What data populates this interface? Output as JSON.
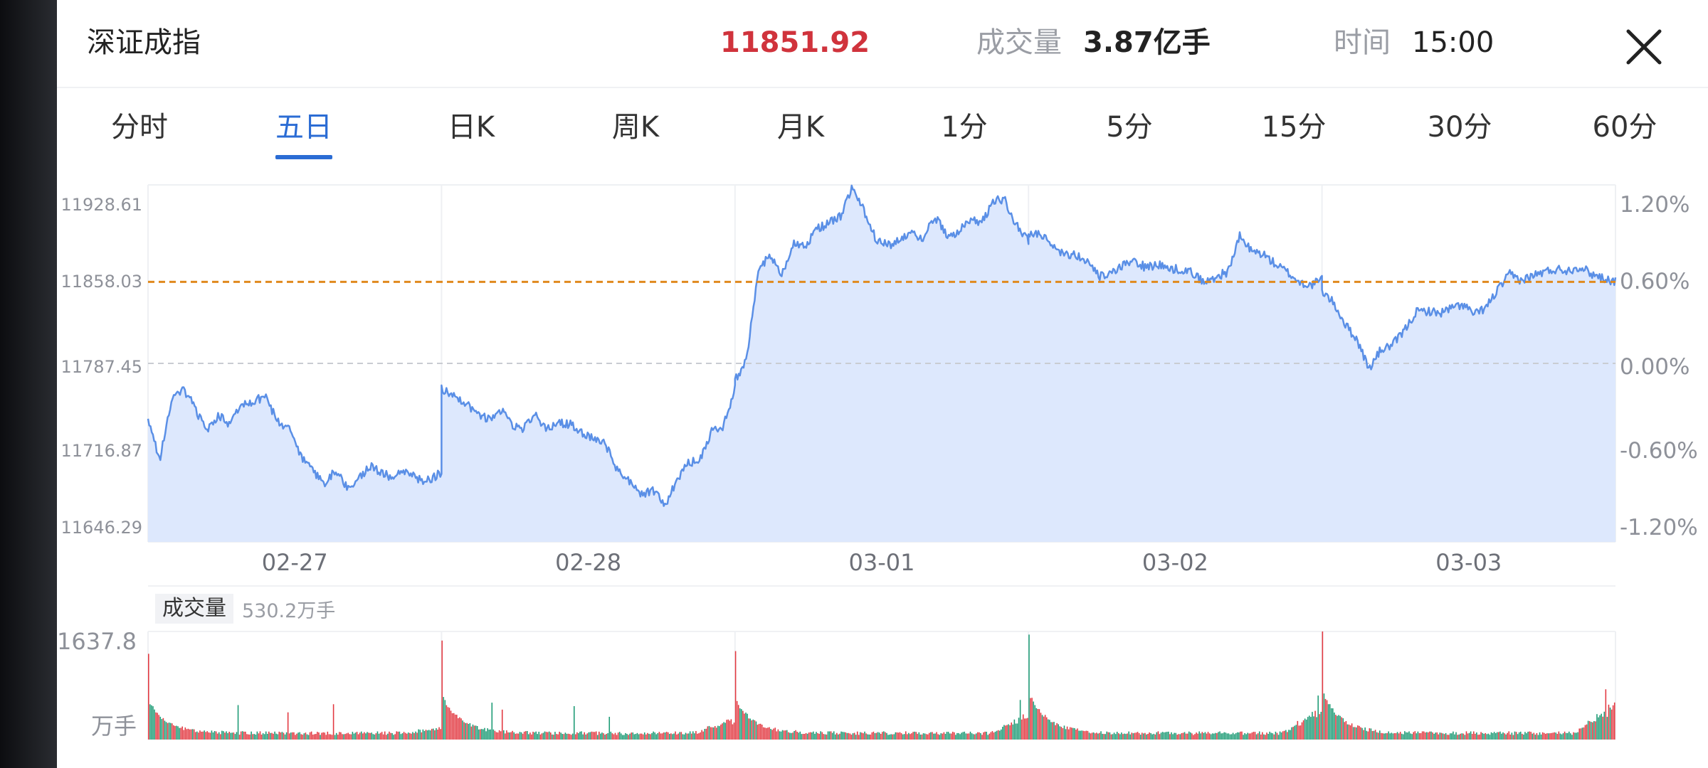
{
  "header": {
    "title": "深证成指",
    "price": "11851.92",
    "volume_label": "成交量",
    "volume_value": "3.87亿手",
    "time_label": "时间",
    "time_value": "15:00",
    "close_icon": "close-icon"
  },
  "tabs": [
    {
      "label": "分时",
      "active": false
    },
    {
      "label": "五日",
      "active": true
    },
    {
      "label": "日K",
      "active": false
    },
    {
      "label": "周K",
      "active": false
    },
    {
      "label": "月K",
      "active": false
    },
    {
      "label": "1分",
      "active": false
    },
    {
      "label": "5分",
      "active": false
    },
    {
      "label": "15分",
      "active": false
    },
    {
      "label": "30分",
      "active": false
    },
    {
      "label": "60分",
      "active": false
    }
  ],
  "volume_panel": {
    "label": "成交量",
    "value": "530.2万手",
    "y_max_label": "1637.8",
    "unit_label": "万手"
  },
  "colors": {
    "accent": "#2b6cd4",
    "up": "#e2373f",
    "down": "#1b9a74",
    "price_line": "#5a8fe6",
    "area_fill": "#dbe7fd",
    "reference_line": "#e08a1e"
  },
  "chart_data": [
    {
      "type": "area",
      "x_tick_labels": [
        "02-27",
        "02-28",
        "03-01",
        "03-02",
        "03-03"
      ],
      "y_tick_labels_left": [
        "11928.61",
        "11858.03",
        "11787.45",
        "11716.87",
        "11646.29"
      ],
      "y_tick_labels_right": [
        "1.20%",
        "0.60%",
        "0.00%",
        "-0.60%",
        "-1.20%"
      ],
      "ylim": [
        11646.29,
        11928.61
      ],
      "prev_close": 11787.45,
      "current": 11851.92,
      "days": [
        "02-27",
        "02-28",
        "03-01",
        "03-02",
        "03-03"
      ],
      "series": [
        {
          "values": [
            [
              11742,
              11712,
              11758,
              11768,
              11752,
              11734,
              11747,
              11739,
              11755,
              11757,
              11762,
              11742,
              11735,
              11714,
              11702,
              11693,
              11703,
              11689,
              11698,
              11706,
              11700,
              11697,
              11704,
              11695,
              11696,
              11701
            ],
            [
              11767,
              11762,
              11757,
              11748,
              11743,
              11751,
              11739,
              11736,
              11747,
              11735,
              11741,
              11739,
              11732,
              11727,
              11723,
              11703,
              11695,
              11683,
              11688,
              11674,
              11695,
              11708,
              11712,
              11734,
              11738,
              11768
            ],
            [
              11774,
              11791,
              11861,
              11873,
              11857,
              11882,
              11881,
              11894,
              11898,
              11904,
              11926,
              11908,
              11886,
              11881,
              11884,
              11891,
              11886,
              11904,
              11889,
              11891,
              11901,
              11898,
              11917,
              11916,
              11896,
              11884
            ],
            [
              11890,
              11889,
              11882,
              11874,
              11874,
              11867,
              11856,
              11858,
              11864,
              11869,
              11863,
              11866,
              11862,
              11862,
              11859,
              11851,
              11856,
              11860,
              11888,
              11876,
              11874,
              11866,
              11860,
              11852,
              11849,
              11854
            ],
            [
              11845,
              11835,
              11818,
              11806,
              11783,
              11798,
              11802,
              11813,
              11828,
              11829,
              11827,
              11831,
              11834,
              11826,
              11832,
              11846,
              11858,
              11853,
              11857,
              11860,
              11862,
              11861,
              11864,
              11858,
              11855,
              11852
            ]
          ]
        }
      ],
      "volume_bars": {
        "ylim": [
          0,
          1637.8
        ],
        "days": [
          {
            "open_burst": 1300,
            "close_burst": 90
          },
          {
            "open_burst": 1500,
            "close_burst": 260
          },
          {
            "open_burst": 1340,
            "close_burst": 330
          },
          {
            "open_burst": 1590,
            "close_burst": 420
          },
          {
            "open_burst": 1637.8,
            "close_burst": 540
          }
        ]
      }
    }
  ]
}
